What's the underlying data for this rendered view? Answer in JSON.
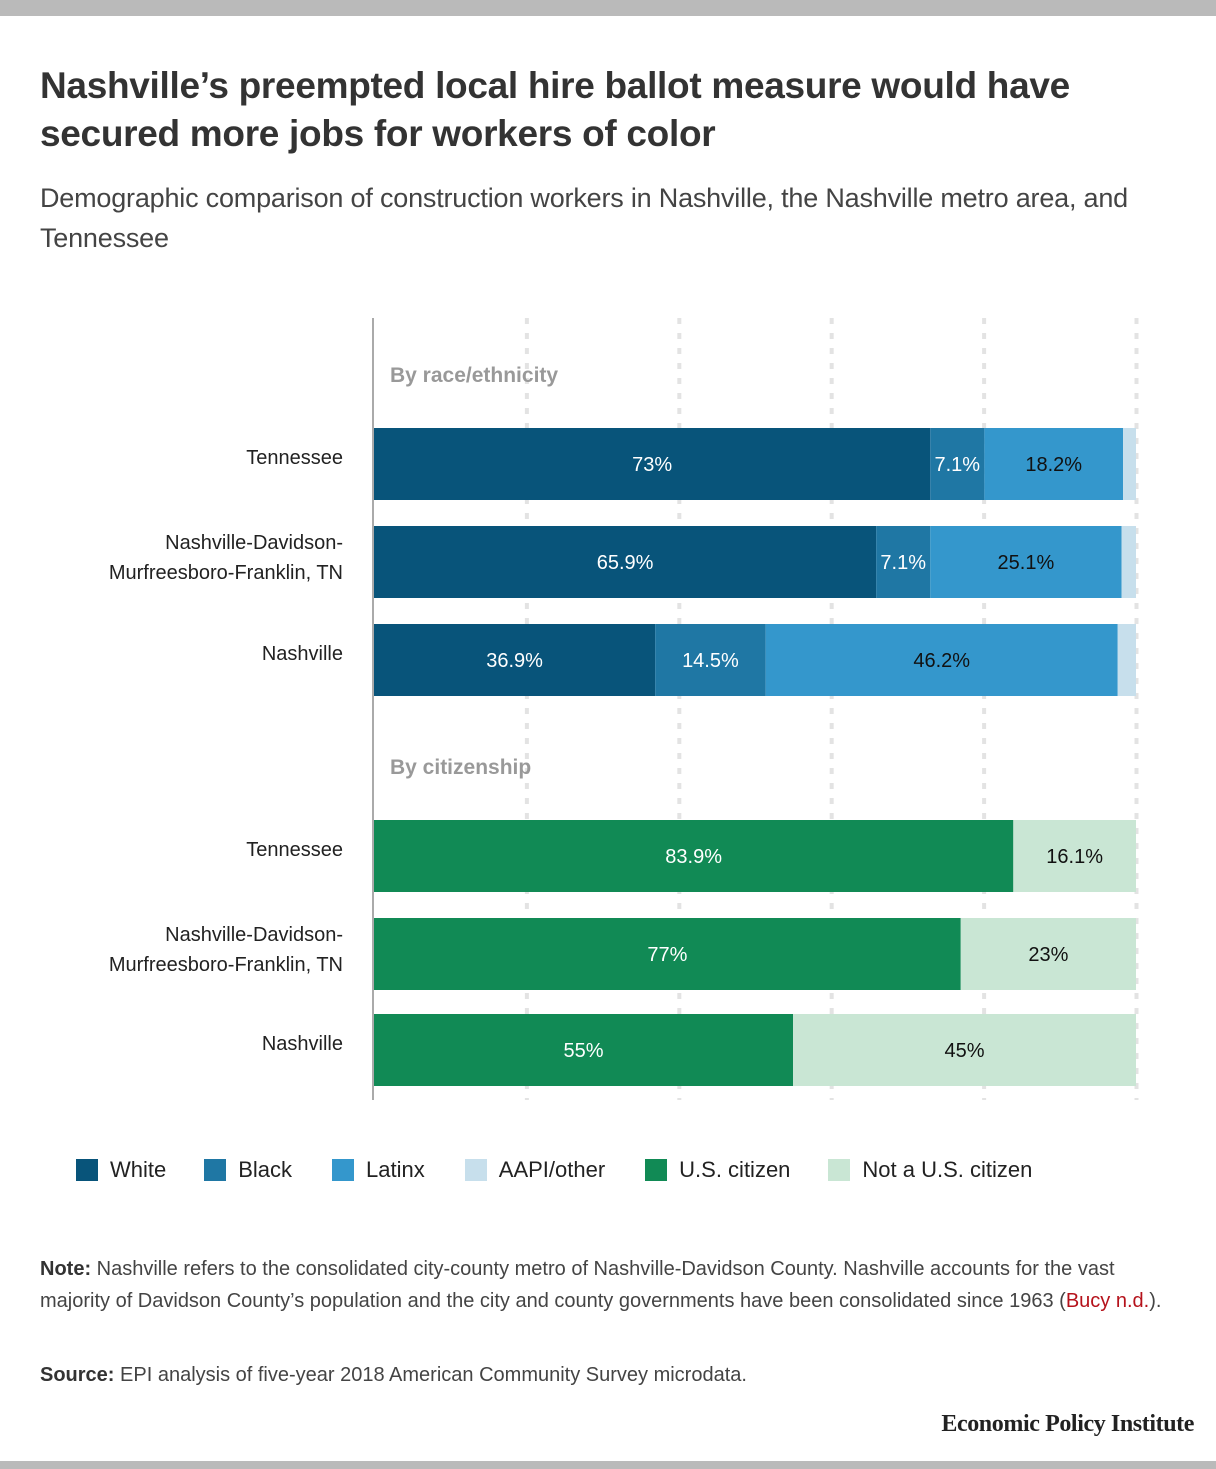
{
  "header": {
    "title": "Nashville’s preempted local hire ballot measure would have secured more jobs for workers of color",
    "subtitle": "Demographic comparison of construction workers in Nashville, the Nashville metro area, and Tennessee"
  },
  "chart_data": {
    "type": "bar",
    "orientation": "horizontal",
    "stacked": true,
    "title": "Nashville’s preempted local hire ballot measure would have secured more jobs for workers of color",
    "subtitle": "Demographic comparison of construction workers in Nashville, the Nashville metro area, and Tennessee",
    "xlabel": "",
    "ylabel": "",
    "xlim": [
      0,
      100
    ],
    "grid": true,
    "legend_position": "bottom",
    "groups": [
      {
        "label": "By race/ethnicity",
        "categories": [
          [
            "Tennessee"
          ],
          [
            "Nashville-Davidson-",
            "Murfreesboro-Franklin, TN"
          ],
          [
            "Nashville"
          ]
        ],
        "series": [
          {
            "name": "White",
            "color": "#08547a",
            "label_color": "#ffffff",
            "values": [
              73.0,
              65.9,
              36.9
            ],
            "labels": [
              "73%",
              "65.9%",
              "36.9%"
            ]
          },
          {
            "name": "Black",
            "color": "#1f77a4",
            "label_color": "#ffffff",
            "values": [
              7.1,
              7.1,
              14.5
            ],
            "labels": [
              "7.1%",
              "7.1%",
              "14.5%"
            ]
          },
          {
            "name": "Latinx",
            "color": "#3497cc",
            "label_color": "#111111",
            "values": [
              18.2,
              25.1,
              46.2
            ],
            "labels": [
              "18.2%",
              "25.1%",
              "46.2%"
            ]
          },
          {
            "name": "AAPI/other",
            "color": "#c7dfec",
            "label_color": "#111111",
            "values": [
              1.7,
              1.9,
              2.4
            ],
            "labels": [
              "",
              "",
              ""
            ]
          }
        ]
      },
      {
        "label": "By citizenship",
        "categories": [
          [
            "Tennessee"
          ],
          [
            "Nashville-Davidson-",
            "Murfreesboro-Franklin, TN"
          ],
          [
            "Nashville"
          ]
        ],
        "series": [
          {
            "name": "U.S. citizen",
            "color": "#118a55",
            "label_color": "#ffffff",
            "values": [
              83.9,
              77.0,
              55.0
            ],
            "labels": [
              "83.9%",
              "77%",
              "55%"
            ]
          },
          {
            "name": "Not a U.S. citizen",
            "color": "#c9e6d4",
            "label_color": "#111111",
            "values": [
              16.1,
              23.0,
              45.0
            ],
            "labels": [
              "16.1%",
              "23%",
              "45%"
            ]
          }
        ]
      }
    ],
    "x_ticks": [
      0,
      20,
      40,
      60,
      80,
      100
    ]
  },
  "legend": [
    {
      "label": "White",
      "color": "#08547a"
    },
    {
      "label": "Black",
      "color": "#1f77a4"
    },
    {
      "label": "Latinx",
      "color": "#3497cc"
    },
    {
      "label": "AAPI/other",
      "color": "#c7dfec"
    },
    {
      "label": "U.S. citizen",
      "color": "#118a55"
    },
    {
      "label": "Not a U.S. citizen",
      "color": "#c9e6d4"
    }
  ],
  "footer": {
    "note_label": "Note:",
    "note_text": " Nashville refers to the consolidated city-county metro of Nashville-Davidson County. Nashville accounts for the vast majority of Davidson County’s population and the city and county governments have been consolidated since 1963 (",
    "note_link": "Bucy n.d.",
    "note_end": ").",
    "source_label": "Source:",
    "source_text": " EPI analysis of five-year 2018 American Community Survey microdata.",
    "brand": "Economic Policy Institute"
  }
}
